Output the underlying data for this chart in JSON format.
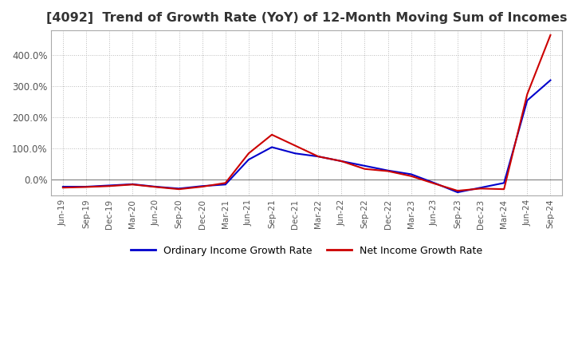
{
  "title": "[4092]  Trend of Growth Rate (YoY) of 12-Month Moving Sum of Incomes",
  "title_fontsize": 11.5,
  "legend_labels": [
    "Ordinary Income Growth Rate",
    "Net Income Growth Rate"
  ],
  "legend_colors": [
    "#0000cc",
    "#cc0000"
  ],
  "ylim": [
    -50,
    480
  ],
  "yticks": [
    0.0,
    100.0,
    200.0,
    300.0,
    400.0
  ],
  "ytick_labels": [
    "0.0%",
    "100.0%",
    "200.0%",
    "300.0%",
    "400.0%"
  ],
  "background_color": "#ffffff",
  "grid_color": "#bbbbbb",
  "dates": [
    "Jun-19",
    "Sep-19",
    "Dec-19",
    "Mar-20",
    "Jun-20",
    "Sep-20",
    "Dec-20",
    "Mar-21",
    "Jun-21",
    "Sep-21",
    "Dec-21",
    "Mar-22",
    "Jun-22",
    "Sep-22",
    "Dec-22",
    "Mar-23",
    "Jun-23",
    "Sep-23",
    "Dec-23",
    "Mar-24",
    "Jun-24",
    "Sep-24"
  ],
  "ordinary_income": [
    -22,
    -22,
    -18,
    -14,
    -22,
    -28,
    -20,
    -15,
    65,
    105,
    85,
    75,
    60,
    45,
    30,
    18,
    -10,
    -40,
    -25,
    -10,
    255,
    320
  ],
  "net_income": [
    -25,
    -23,
    -20,
    -15,
    -23,
    -30,
    -22,
    -10,
    85,
    145,
    110,
    75,
    60,
    35,
    28,
    12,
    -12,
    -35,
    -28,
    -30,
    275,
    465
  ]
}
